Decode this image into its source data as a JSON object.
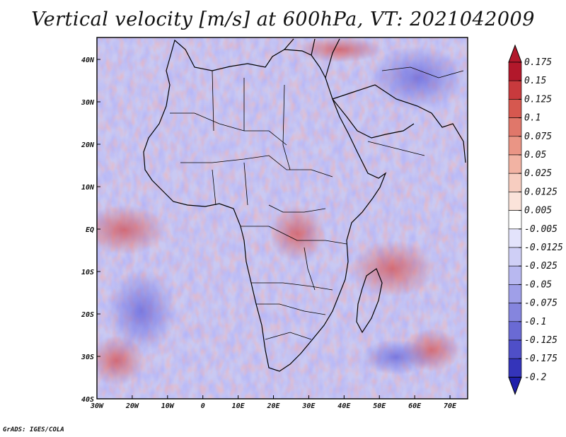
{
  "title": "Vertical velocity [m/s] at 600hPa, VT: 2021042009",
  "credit": "GrADS: IGES/COLA",
  "map": {
    "lon_labels": [
      "30W",
      "20W",
      "10W",
      "0",
      "10E",
      "20E",
      "30E",
      "40E",
      "50E",
      "60E",
      "70E"
    ],
    "lat_labels": [
      "40N",
      "30N",
      "20N",
      "10N",
      "EQ",
      "10S",
      "20S",
      "30S",
      "40S"
    ]
  },
  "colorbar": {
    "levels": [
      "0.175",
      "0.15",
      "0.125",
      "0.1",
      "0.075",
      "0.05",
      "0.025",
      "0.0125",
      "0.005",
      "-0.005",
      "-0.0125",
      "-0.025",
      "-0.05",
      "-0.075",
      "-0.1",
      "-0.125",
      "-0.175",
      "-0.2"
    ],
    "colors": [
      "#b2182b",
      "#c83a3d",
      "#d6584f",
      "#e0776a",
      "#ea9585",
      "#f2b3a3",
      "#f7cdc0",
      "#fbe3da",
      "#ffffff",
      "#e3e3fb",
      "#cfcff6",
      "#b8b8f0",
      "#9f9fe8",
      "#8585de",
      "#6a6ad4",
      "#4f4fc8",
      "#3434ba",
      "#1f1faa"
    ]
  }
}
